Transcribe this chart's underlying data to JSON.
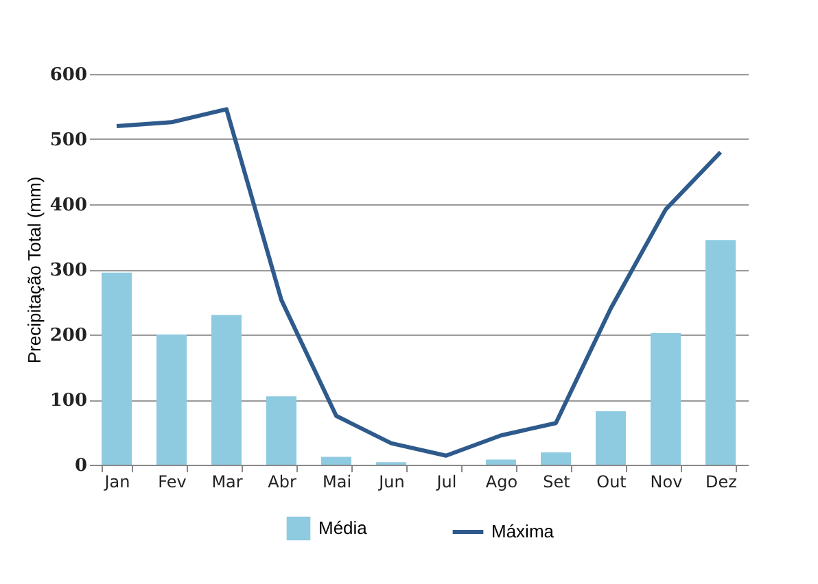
{
  "chart_data": {
    "type": "bar",
    "ylabel": "Precipitação Total (mm)",
    "categories": [
      "Jan",
      "Fev",
      "Mar",
      "Abr",
      "Mai",
      "Jun",
      "Jul",
      "Ago",
      "Set",
      "Out",
      "Nov",
      "Dez"
    ],
    "series": [
      {
        "name": "Média",
        "color": "#8ecae0",
        "values": [
          295,
          200,
          230,
          105,
          12,
          4,
          0,
          8,
          19,
          82,
          202,
          345
        ]
      },
      {
        "name": "Máxima",
        "type": "line",
        "color": "#2e5a8c",
        "values": [
          520,
          526,
          546,
          253,
          75,
          33,
          14,
          45,
          64,
          240,
          392,
          480
        ]
      }
    ],
    "ylim": [
      0,
      600
    ],
    "yticks": [
      0,
      100,
      200,
      300,
      400,
      500,
      600
    ],
    "grid": "y",
    "legend": "bottom",
    "marker": "none"
  }
}
